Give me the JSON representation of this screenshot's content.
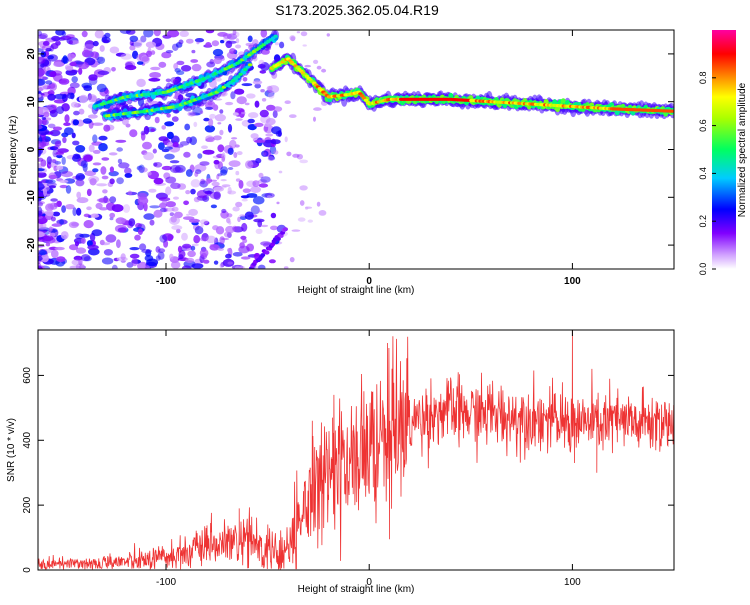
{
  "figure_title": "S173.2025.362.05.04.R19",
  "chart_data": [
    {
      "type": "heatmap",
      "xlabel": "Height of straight line (km)",
      "ylabel": "Frequency (Hz)",
      "xlim": [
        -163,
        150
      ],
      "ylim": [
        -25,
        25
      ],
      "xticks": [
        -100,
        0,
        100
      ],
      "yticks": [
        -20,
        -10,
        0,
        10,
        20
      ],
      "colorbar": {
        "label": "Normalized spectral amplitude",
        "range": [
          0,
          1
        ],
        "ticks": [
          0.0,
          0.2,
          0.4,
          0.6,
          0.8
        ],
        "colors": [
          "#ffffff",
          "#8000ff",
          "#0000ff",
          "#00ffff",
          "#00ff00",
          "#ffff00",
          "#ff8000",
          "#ff0000",
          "#ff00a0"
        ]
      },
      "ridges": [
        {
          "x": [
            -135,
            -120,
            -100,
            -80,
            -65,
            -55,
            -45
          ],
          "y": [
            9,
            11,
            12,
            15,
            18,
            21,
            24
          ]
        },
        {
          "x": [
            -130,
            -110,
            -95,
            -85,
            -75,
            -65,
            -58
          ],
          "y": [
            7,
            8,
            9,
            10.5,
            12,
            15,
            18
          ]
        },
        {
          "x": [
            -48,
            -40,
            -35,
            -30,
            -25,
            -20,
            -10,
            -5,
            0,
            5,
            10,
            20,
            40,
            60,
            80,
            100,
            120,
            150
          ],
          "y": [
            17,
            19,
            17,
            15,
            13,
            11,
            11.5,
            12,
            9.5,
            10,
            10.5,
            10.5,
            10.5,
            10,
            9.5,
            9,
            8.5,
            8
          ]
        }
      ]
    },
    {
      "type": "line",
      "xlabel": "Height of straight line (km)",
      "ylabel": "SNR (10 * v/v)",
      "xlim": [
        -163,
        150
      ],
      "ylim": [
        0,
        740
      ],
      "xticks": [
        -100,
        0,
        100
      ],
      "yticks": [
        0,
        200,
        400,
        600
      ],
      "color": "#ee3333",
      "x": [
        -163,
        -150,
        -140,
        -130,
        -120,
        -110,
        -100,
        -90,
        -80,
        -70,
        -60,
        -50,
        -45,
        -40,
        -35,
        -30,
        -25,
        -20,
        -15,
        -10,
        -5,
        0,
        5,
        10,
        15,
        20,
        25,
        30,
        40,
        50,
        60,
        70,
        80,
        90,
        100,
        110,
        120,
        130,
        140,
        150
      ],
      "y": [
        15,
        18,
        20,
        22,
        25,
        30,
        40,
        55,
        70,
        80,
        90,
        60,
        45,
        70,
        150,
        220,
        270,
        300,
        310,
        330,
        340,
        360,
        380,
        400,
        420,
        450,
        470,
        480,
        490,
        480,
        485,
        470,
        475,
        460,
        450,
        455,
        460,
        450,
        455,
        460
      ],
      "spikes": [
        {
          "x": -64,
          "y": 190
        },
        {
          "x": -28,
          "y": 460
        },
        {
          "x": -18,
          "y": 470
        },
        {
          "x": -8,
          "y": 430
        },
        {
          "x": 9,
          "y": 700
        },
        {
          "x": 10,
          "y": 95
        },
        {
          "x": 100,
          "y": 740
        },
        {
          "x": 101,
          "y": 330
        },
        {
          "x": 112,
          "y": 300
        }
      ]
    }
  ]
}
